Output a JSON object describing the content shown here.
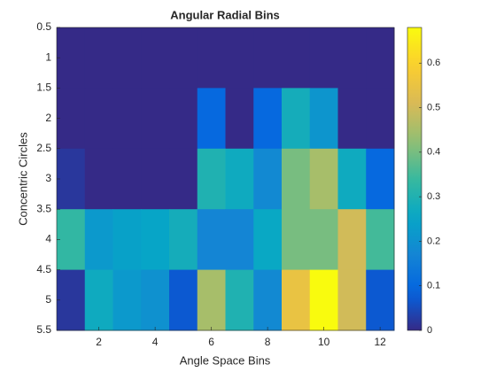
{
  "chart_data": {
    "type": "heatmap",
    "title": "Angular Radial Bins",
    "xlabel": "Angle Space Bins",
    "ylabel": "Concentric Circles",
    "x": [
      1,
      2,
      3,
      4,
      5,
      6,
      7,
      8,
      9,
      10,
      11,
      12
    ],
    "y": [
      1,
      2,
      3,
      4,
      5
    ],
    "z": [
      [
        0,
        0,
        0,
        0,
        0,
        0,
        0,
        0,
        0,
        0,
        0,
        0
      ],
      [
        0,
        0,
        0,
        0,
        0,
        0.1,
        0,
        0.1,
        0.28,
        0.21,
        0,
        0
      ],
      [
        0.02,
        0,
        0,
        0,
        0,
        0.3,
        0.27,
        0.18,
        0.4,
        0.45,
        0.27,
        0.1
      ],
      [
        0.33,
        0.22,
        0.24,
        0.25,
        0.28,
        0.17,
        0.17,
        0.26,
        0.4,
        0.4,
        0.5,
        0.35
      ],
      [
        0.02,
        0.27,
        0.22,
        0.2,
        0.07,
        0.45,
        0.3,
        0.18,
        0.55,
        0.68,
        0.5,
        0.07
      ]
    ],
    "xlim": [
      0.5,
      12.5
    ],
    "ylim": [
      0.5,
      5.5
    ],
    "y_reversed": true,
    "xticks": [
      2,
      4,
      6,
      8,
      10,
      12
    ],
    "yticks": [
      0.5,
      1,
      1.5,
      2,
      2.5,
      3,
      3.5,
      4,
      4.5,
      5,
      5.5
    ],
    "colorbar": {
      "clim": [
        0,
        0.68
      ],
      "ticks": [
        0,
        0.1,
        0.2,
        0.3,
        0.4,
        0.5,
        0.6
      ]
    }
  }
}
